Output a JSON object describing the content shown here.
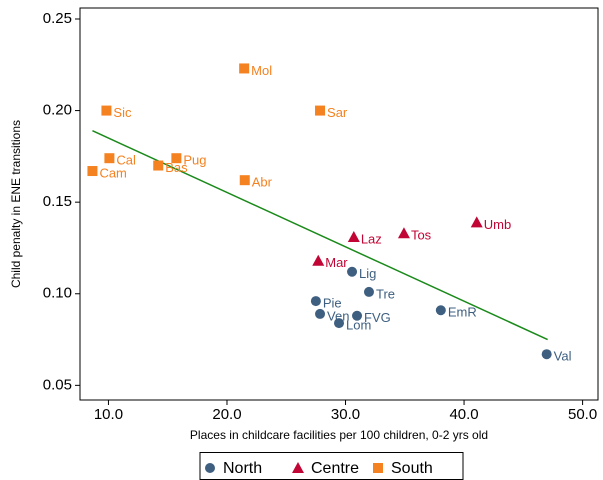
{
  "chart_data": {
    "type": "scatter",
    "x_label": "Places in childcare facilities per 100 children, 0-2 yrs old",
    "y_label": "Child penalty in ENE transitions",
    "xlim": [
      7.6,
      51.3
    ],
    "xticks": [
      {
        "value": 10,
        "label": "10.0"
      },
      {
        "value": 20,
        "label": "20.0"
      },
      {
        "value": 30,
        "label": "30.0"
      },
      {
        "value": 40,
        "label": "40.0"
      },
      {
        "value": 50,
        "label": "50.0"
      }
    ],
    "ylim": [
      0.042,
      0.256
    ],
    "yticks": [
      {
        "value": 0.05,
        "label": "0.05"
      },
      {
        "value": 0.1,
        "label": "0.10"
      },
      {
        "value": 0.15,
        "label": "0.15"
      },
      {
        "value": 0.2,
        "label": "0.20"
      },
      {
        "value": 0.25,
        "label": "0.25"
      }
    ],
    "grid": false,
    "legend": "bottom",
    "series": [
      {
        "name": "North",
        "color": "#3e5f80",
        "marker": "circle",
        "x": [
          30.55,
          31.98,
          27.5,
          38.04,
          27.85,
          30.97,
          29.45,
          46.97
        ],
        "y": [
          0.112,
          0.101,
          0.096,
          0.091,
          0.089,
          0.088,
          0.084,
          0.067
        ],
        "labels": [
          "Lig",
          "Tre",
          "Pie",
          "EmR",
          "Ven",
          "FVG",
          "Lom",
          "Val"
        ]
      },
      {
        "name": "Centre",
        "color": "#c10534",
        "marker": "triangle",
        "x": [
          41.07,
          34.93,
          30.7,
          27.7
        ],
        "y": [
          0.139,
          0.133,
          0.131,
          0.118
        ],
        "labels": [
          "Umb",
          "Tos",
          "Laz",
          "Mar"
        ]
      },
      {
        "name": "South",
        "color": "#f58220",
        "marker": "square",
        "x": [
          21.45,
          9.83,
          27.85,
          10.08,
          15.73,
          8.65,
          14.2,
          21.5
        ],
        "y": [
          0.223,
          0.2,
          0.2,
          0.174,
          0.174,
          0.167,
          0.17,
          0.162
        ],
        "labels": [
          "Mol",
          "Sic",
          "Sar",
          "Cal",
          "Pug",
          "Cam",
          "Bas",
          "Abr"
        ]
      }
    ],
    "fit": {
      "color": "#1a8a1a",
      "x": [
        8.65,
        47.05
      ],
      "y": [
        0.189,
        0.075
      ]
    }
  }
}
